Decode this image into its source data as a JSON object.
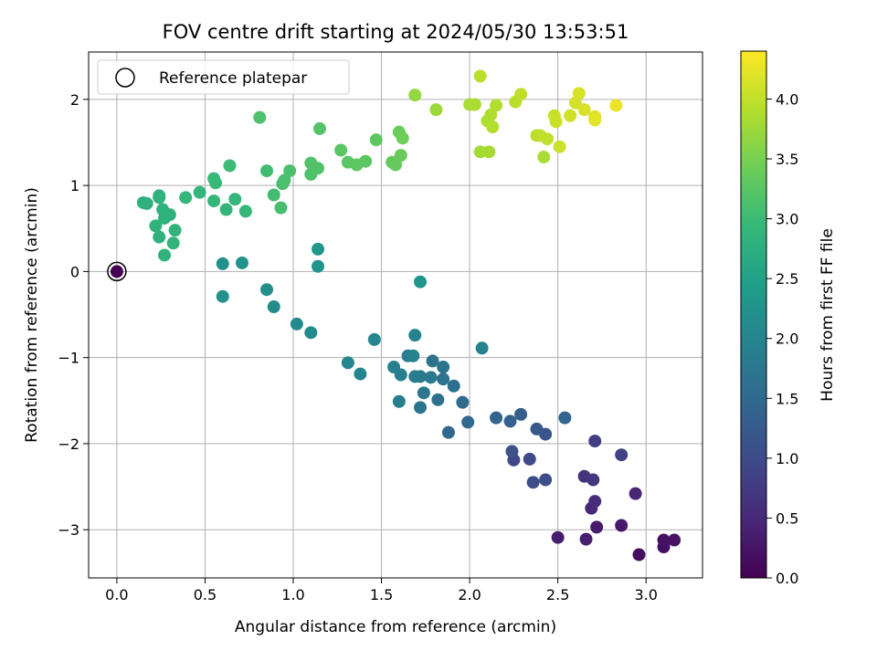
{
  "chart_data": {
    "type": "scatter",
    "title": "FOV centre drift starting at 2024/05/30 13:53:51",
    "xlabel": "Angular distance from reference (arcmin)",
    "ylabel": "Rotation from reference (arcmin)",
    "xlim": [
      -0.16,
      3.32
    ],
    "ylim": [
      -3.56,
      2.55
    ],
    "xticks": [
      0.0,
      0.5,
      1.0,
      1.5,
      2.0,
      2.5,
      3.0
    ],
    "xtick_labels": [
      "0.0",
      "0.5",
      "1.0",
      "1.5",
      "2.0",
      "2.5",
      "3.0"
    ],
    "yticks": [
      -3,
      -2,
      -1,
      0,
      1,
      2
    ],
    "ytick_labels": [
      "−3",
      "−2",
      "−1",
      "0",
      "1",
      "2"
    ],
    "grid": true,
    "legend": {
      "placement": "top-left",
      "entries": [
        "Reference platepar"
      ]
    },
    "colorbar": {
      "label": "Hours from first FF file",
      "colormap": "viridis",
      "range": [
        0.0,
        4.4
      ],
      "ticks": [
        0.0,
        0.5,
        1.0,
        1.5,
        2.0,
        2.5,
        3.0,
        3.5,
        4.0
      ],
      "tick_labels": [
        "0.0",
        "0.5",
        "1.0",
        "1.5",
        "2.0",
        "2.5",
        "3.0",
        "3.5",
        "4.0"
      ]
    },
    "reference_point": {
      "x": 0.0,
      "y": 0.0
    },
    "series": [
      {
        "points": [
          [
            0.0,
            0.0,
            0.0
          ],
          [
            2.96,
            -3.29,
            0.15
          ],
          [
            3.1,
            -3.2,
            0.17
          ],
          [
            3.1,
            -3.12,
            0.2
          ],
          [
            3.16,
            -3.12,
            0.22
          ],
          [
            2.72,
            -2.97,
            0.32
          ],
          [
            2.86,
            -2.95,
            0.3
          ],
          [
            2.5,
            -3.09,
            0.35
          ],
          [
            2.66,
            -3.11,
            0.38
          ],
          [
            2.94,
            -2.58,
            0.45
          ],
          [
            2.69,
            -2.75,
            0.5
          ],
          [
            2.71,
            -2.67,
            0.55
          ],
          [
            2.65,
            -2.38,
            0.65
          ],
          [
            2.7,
            -2.42,
            0.7
          ],
          [
            2.71,
            -1.97,
            0.8
          ],
          [
            2.86,
            -2.13,
            0.85
          ],
          [
            2.25,
            -2.19,
            0.95
          ],
          [
            2.34,
            -2.18,
            1.0
          ],
          [
            2.36,
            -2.45,
            1.02
          ],
          [
            2.43,
            -2.42,
            1.05
          ],
          [
            2.24,
            -2.09,
            1.1
          ],
          [
            2.43,
            -1.89,
            1.15
          ],
          [
            2.38,
            -1.83,
            1.2
          ],
          [
            2.29,
            -1.66,
            1.3
          ],
          [
            2.23,
            -1.74,
            1.35
          ],
          [
            2.15,
            -1.7,
            1.4
          ],
          [
            2.54,
            -1.7,
            1.42
          ],
          [
            1.88,
            -1.87,
            1.45
          ],
          [
            1.99,
            -1.75,
            1.5
          ],
          [
            1.96,
            -1.52,
            1.55
          ],
          [
            1.91,
            -1.33,
            1.6
          ],
          [
            1.82,
            -1.49,
            1.62
          ],
          [
            1.85,
            -1.25,
            1.65
          ],
          [
            1.85,
            -1.11,
            1.68
          ],
          [
            1.79,
            -1.04,
            1.7
          ],
          [
            1.72,
            -1.58,
            1.72
          ],
          [
            1.74,
            -1.41,
            1.75
          ],
          [
            1.78,
            -1.23,
            1.78
          ],
          [
            1.72,
            -1.22,
            1.8
          ],
          [
            1.69,
            -1.22,
            1.82
          ],
          [
            1.65,
            -0.98,
            1.85
          ],
          [
            1.61,
            -1.2,
            1.88
          ],
          [
            1.6,
            -1.51,
            1.9
          ],
          [
            1.57,
            -1.11,
            1.92
          ],
          [
            1.68,
            -0.98,
            1.95
          ],
          [
            1.69,
            -0.74,
            1.98
          ],
          [
            2.07,
            -0.89,
            1.96
          ],
          [
            1.46,
            -0.79,
            2.05
          ],
          [
            1.38,
            -1.19,
            2.0
          ],
          [
            1.31,
            -1.06,
            2.02
          ],
          [
            1.1,
            -0.71,
            2.1
          ],
          [
            1.02,
            -0.61,
            2.12
          ],
          [
            0.89,
            -0.41,
            2.15
          ],
          [
            0.85,
            -0.21,
            2.18
          ],
          [
            0.6,
            -0.29,
            2.2
          ],
          [
            0.6,
            0.09,
            2.22
          ],
          [
            0.71,
            0.1,
            2.25
          ],
          [
            1.14,
            0.06,
            2.27
          ],
          [
            1.14,
            0.26,
            2.3
          ],
          [
            1.72,
            -0.12,
            2.28
          ],
          [
            0.15,
            0.8,
            2.8
          ],
          [
            0.17,
            0.79,
            2.8
          ],
          [
            0.24,
            0.86,
            2.82
          ],
          [
            0.24,
            0.88,
            2.82
          ],
          [
            0.26,
            0.72,
            2.82
          ],
          [
            0.3,
            0.66,
            2.83
          ],
          [
            0.27,
            0.62,
            2.83
          ],
          [
            0.22,
            0.53,
            2.84
          ],
          [
            0.24,
            0.4,
            2.84
          ],
          [
            0.33,
            0.48,
            2.85
          ],
          [
            0.32,
            0.33,
            2.85
          ],
          [
            0.27,
            0.19,
            2.85
          ],
          [
            0.39,
            0.86,
            2.9
          ],
          [
            0.47,
            0.92,
            2.9
          ],
          [
            0.55,
            0.82,
            2.92
          ],
          [
            0.62,
            0.72,
            2.9
          ],
          [
            0.67,
            0.84,
            2.93
          ],
          [
            0.73,
            0.7,
            2.93
          ],
          [
            0.55,
            1.08,
            2.97
          ],
          [
            0.56,
            1.03,
            2.97
          ],
          [
            0.64,
            1.23,
            3.0
          ],
          [
            0.85,
            1.17,
            3.05
          ],
          [
            0.89,
            0.89,
            3.05
          ],
          [
            0.93,
            0.74,
            3.1
          ],
          [
            0.94,
            1.02,
            3.1
          ],
          [
            0.95,
            1.06,
            3.12
          ],
          [
            0.98,
            1.17,
            3.12
          ],
          [
            0.81,
            1.79,
            3.15
          ],
          [
            1.1,
            1.13,
            3.15
          ],
          [
            1.1,
            1.26,
            3.18
          ],
          [
            1.14,
            1.2,
            3.18
          ],
          [
            1.15,
            1.66,
            3.2
          ],
          [
            1.27,
            1.41,
            3.25
          ],
          [
            1.31,
            1.27,
            3.25
          ],
          [
            1.36,
            1.24,
            3.27
          ],
          [
            1.41,
            1.28,
            3.27
          ],
          [
            1.47,
            1.53,
            3.3
          ],
          [
            1.56,
            1.27,
            3.35
          ],
          [
            1.58,
            1.24,
            3.35
          ],
          [
            1.61,
            1.35,
            3.38
          ],
          [
            1.6,
            1.62,
            3.4
          ],
          [
            1.62,
            1.55,
            3.42
          ],
          [
            1.69,
            2.05,
            3.7
          ],
          [
            1.81,
            1.88,
            3.75
          ],
          [
            2.0,
            1.94,
            3.85
          ],
          [
            2.03,
            1.94,
            3.85
          ],
          [
            2.06,
            1.39,
            3.8
          ],
          [
            2.11,
            1.39,
            3.82
          ],
          [
            2.1,
            1.75,
            3.88
          ],
          [
            2.12,
            1.82,
            3.88
          ],
          [
            2.13,
            1.68,
            3.9
          ],
          [
            2.15,
            1.93,
            3.9
          ],
          [
            2.06,
            2.27,
            3.95
          ],
          [
            2.26,
            1.97,
            3.95
          ],
          [
            2.29,
            2.06,
            3.98
          ],
          [
            2.42,
            1.33,
            3.85
          ],
          [
            2.38,
            1.58,
            3.95
          ],
          [
            2.4,
            1.58,
            3.98
          ],
          [
            2.44,
            1.54,
            4.0
          ],
          [
            2.48,
            1.81,
            4.05
          ],
          [
            2.49,
            1.74,
            4.05
          ],
          [
            2.51,
            1.45,
            4.05
          ],
          [
            2.57,
            1.81,
            4.1
          ],
          [
            2.6,
            1.96,
            4.12
          ],
          [
            2.62,
            2.07,
            4.15
          ],
          [
            2.65,
            1.88,
            4.15
          ],
          [
            2.71,
            1.8,
            4.2
          ],
          [
            2.71,
            1.76,
            4.22
          ],
          [
            2.83,
            1.93,
            4.28
          ]
        ]
      }
    ]
  }
}
